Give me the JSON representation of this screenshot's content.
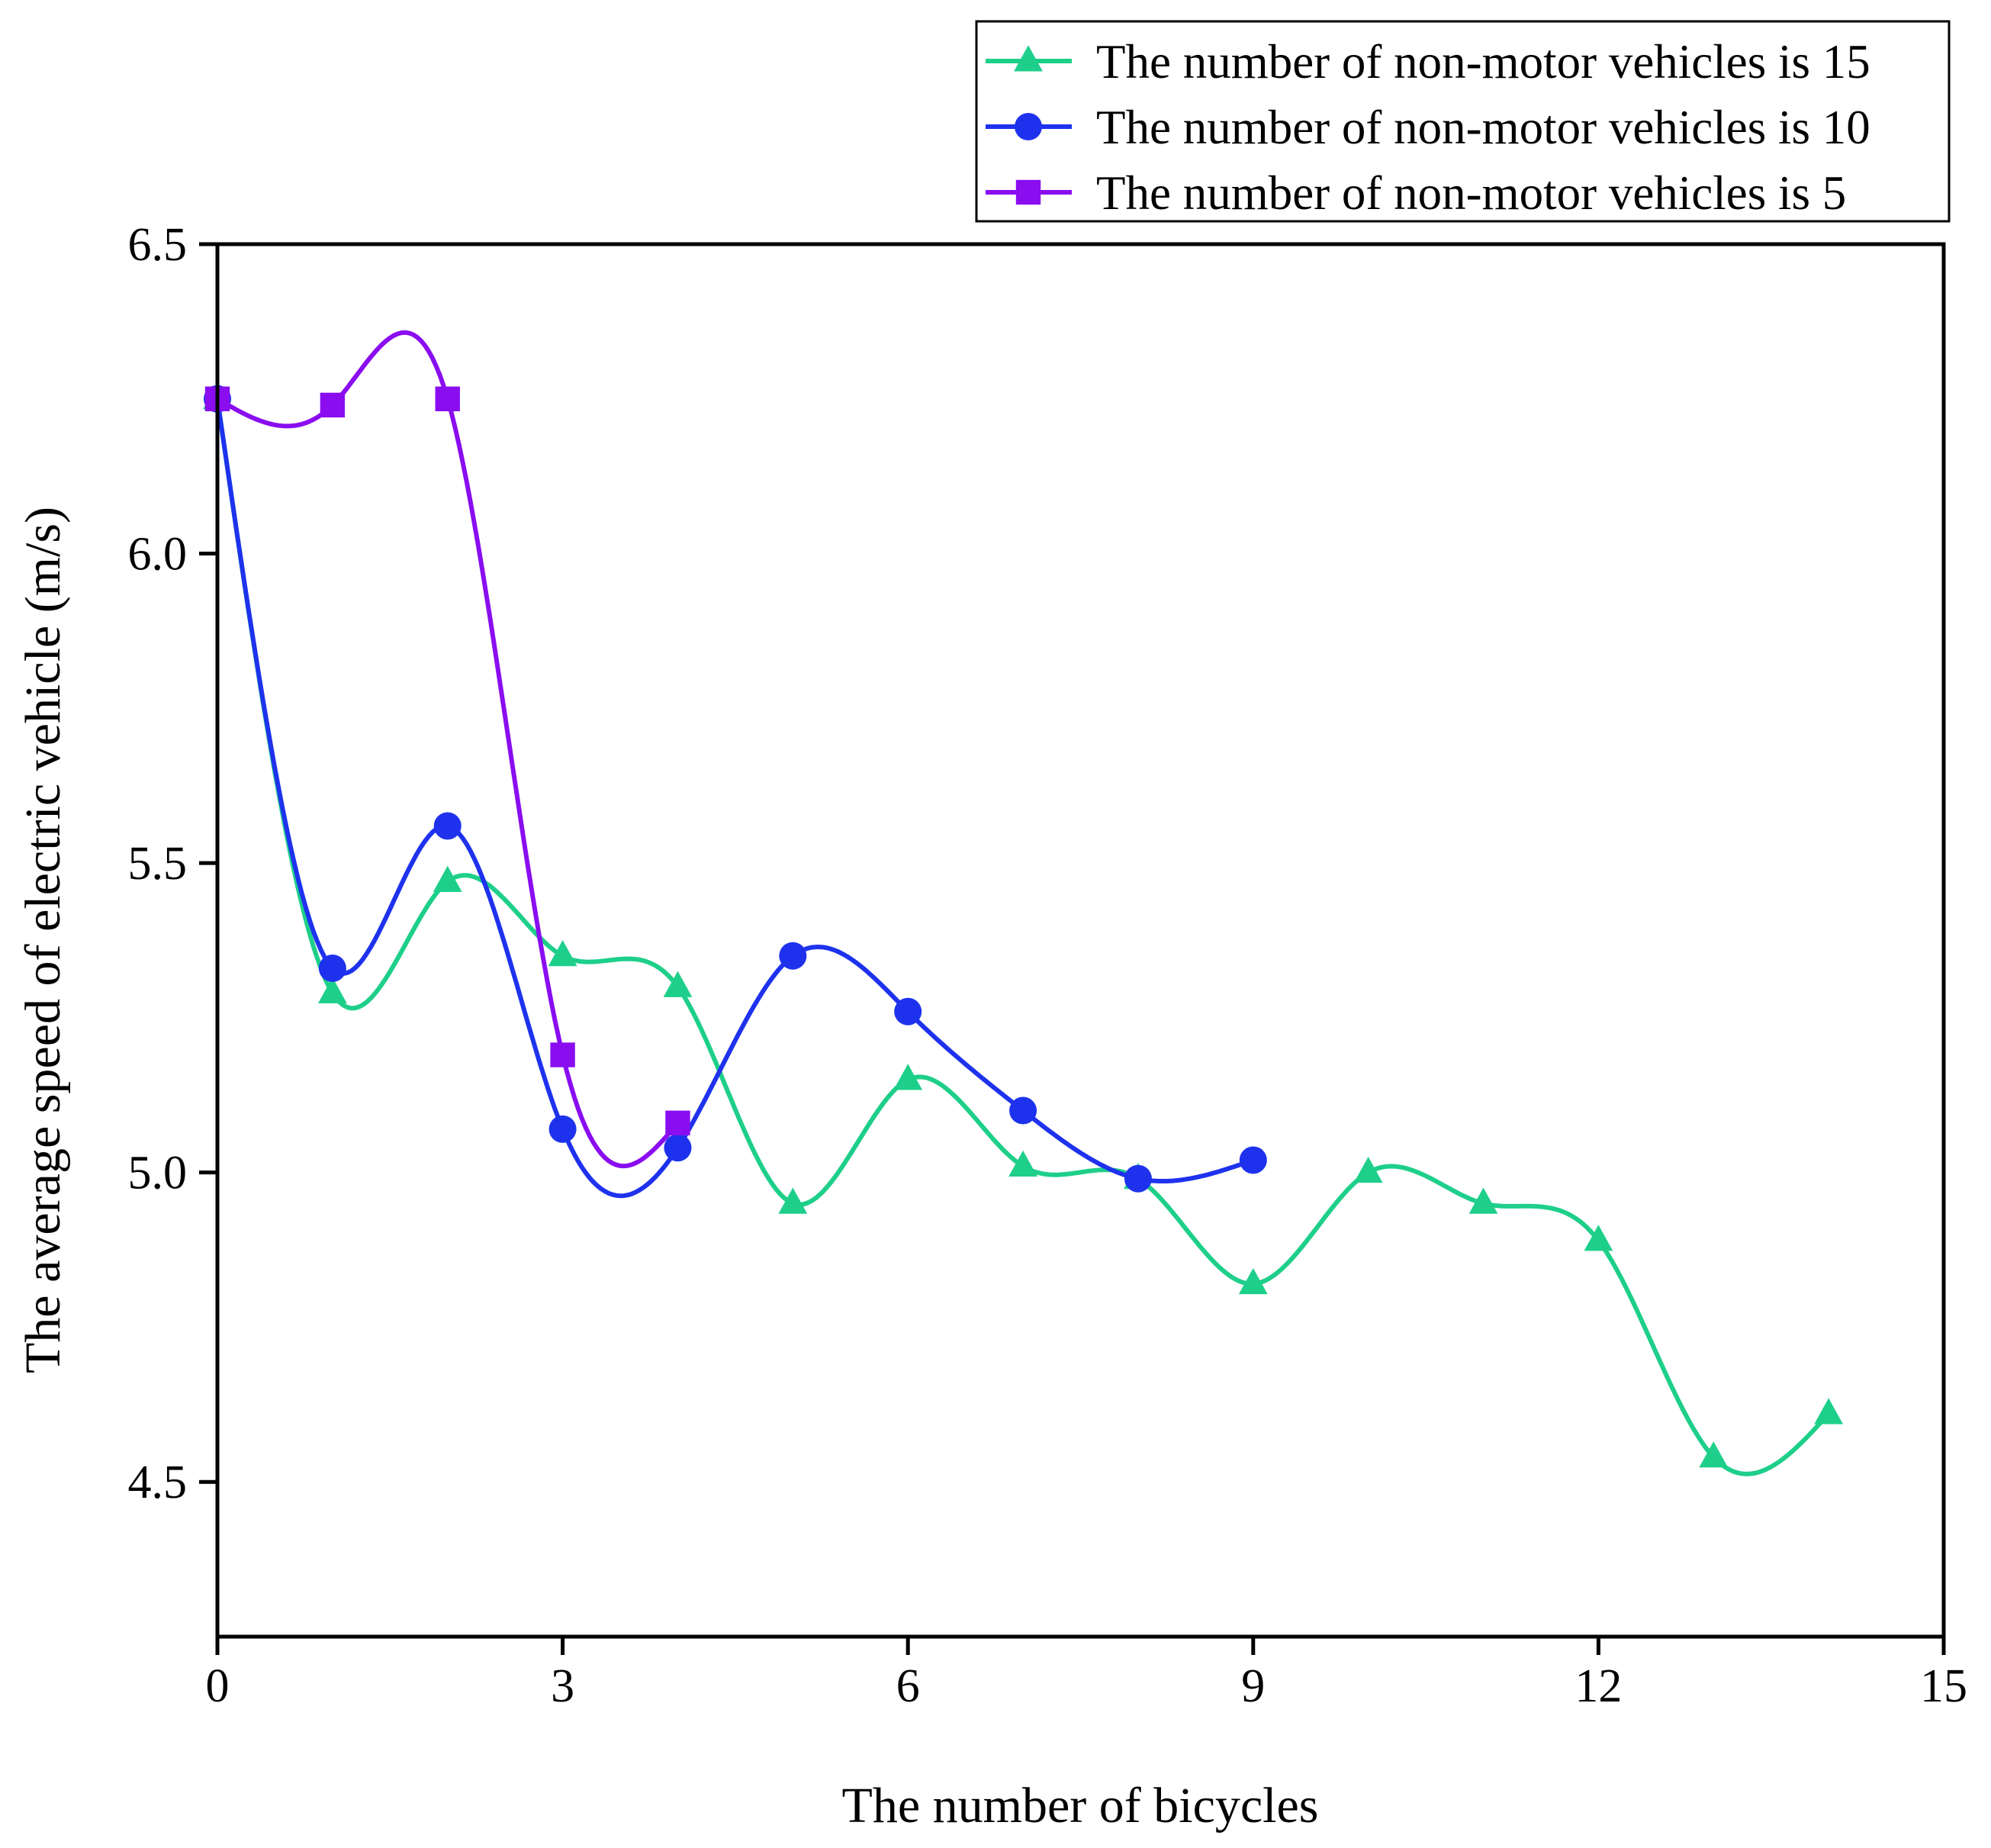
{
  "chart_data": {
    "type": "line",
    "title": "",
    "xlabel": "The number of bicycles",
    "ylabel": "The average speed of electric vehicle (m/s)",
    "xlim": [
      0,
      15
    ],
    "ylim": [
      4.25,
      6.5
    ],
    "xticks": [
      0,
      3,
      6,
      9,
      12,
      15
    ],
    "xtick_labels": [
      "0",
      "3",
      "6",
      "9",
      "12",
      "15"
    ],
    "yticks": [
      4.5,
      5.0,
      5.5,
      6.0,
      6.5
    ],
    "ytick_labels": [
      "4.5",
      "5.0",
      "5.5",
      "6.0",
      "6.5"
    ],
    "grid": false,
    "legend_position": "top-right",
    "series": [
      {
        "name": "The number of non-motor vehicles is 15",
        "color": "#1ecf8a",
        "marker": "triangle",
        "x": [
          0,
          1,
          2,
          3,
          4,
          5,
          6,
          7,
          8,
          9,
          10,
          11,
          12,
          13,
          14
        ],
        "values": [
          6.25,
          5.29,
          5.47,
          5.35,
          5.3,
          4.95,
          5.15,
          5.01,
          4.99,
          4.82,
          5.0,
          4.95,
          4.89,
          4.54,
          4.61
        ]
      },
      {
        "name": "The number of non-motor vehicles is 10",
        "color": "#1e32ee",
        "marker": "circle",
        "x": [
          0,
          1,
          2,
          3,
          4,
          5,
          6,
          7,
          8,
          9
        ],
        "values": [
          6.25,
          5.33,
          5.56,
          5.07,
          5.04,
          5.35,
          5.26,
          5.1,
          4.99,
          5.02
        ]
      },
      {
        "name": "The number of non-motor vehicles is 5",
        "color": "#8a0df0",
        "marker": "square",
        "x": [
          0,
          1,
          2,
          3,
          4
        ],
        "values": [
          6.25,
          6.24,
          6.25,
          5.19,
          5.08
        ]
      }
    ]
  }
}
